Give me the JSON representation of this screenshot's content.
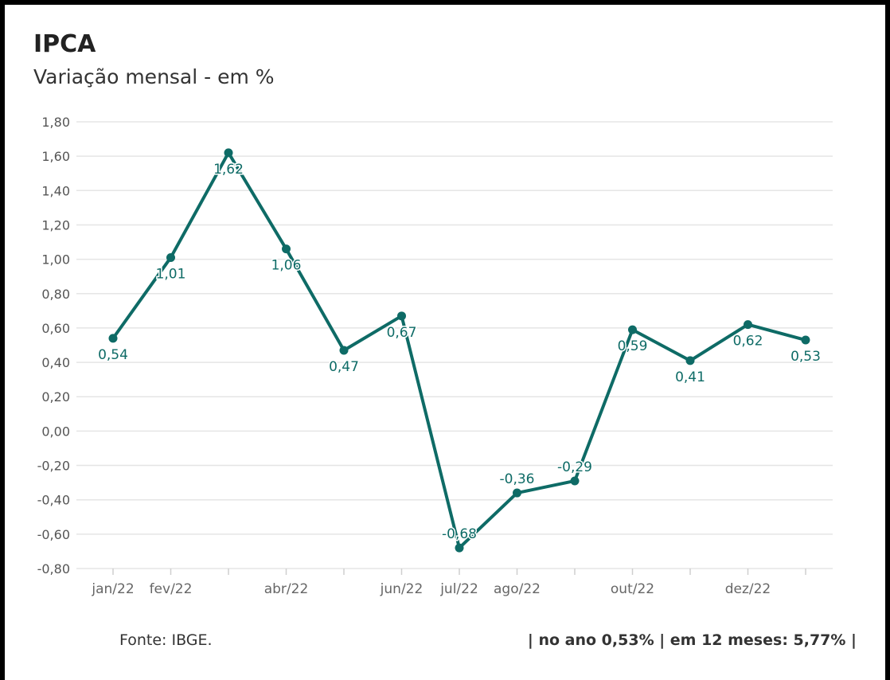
{
  "title": "IPCA",
  "subtitle": "Variação mensal - em %",
  "footer": {
    "source": "Fonte: IBGE.",
    "stats": "| no ano 0,53% | em 12 meses: 5,77% |"
  },
  "colors": {
    "line": "#0e6b66",
    "grid": "#e5e5e5",
    "text": "#333333"
  },
  "chart_data": {
    "type": "line",
    "title": "IPCA",
    "subtitle": "Variação mensal - em %",
    "xlabel": "",
    "ylabel": "",
    "ylim": [
      -0.8,
      1.8
    ],
    "yticks": [
      "1,80",
      "1,60",
      "1,40",
      "1,20",
      "1,00",
      "0,80",
      "0,60",
      "0,40",
      "0,20",
      "0,00",
      "-0,20",
      "-0,40",
      "-0,60",
      "-0,80"
    ],
    "ytick_values": [
      1.8,
      1.6,
      1.4,
      1.2,
      1.0,
      0.8,
      0.6,
      0.4,
      0.2,
      0.0,
      -0.2,
      -0.4,
      -0.6,
      -0.8
    ],
    "xtick_labels": [
      "jan/22",
      "fev/22",
      "",
      "abr/22",
      "",
      "jun/22",
      "jul/22",
      "ago/22",
      "",
      "out/22",
      "",
      "dez/22",
      ""
    ],
    "values": [
      0.54,
      1.01,
      1.62,
      1.06,
      0.47,
      0.67,
      -0.68,
      -0.36,
      -0.29,
      0.59,
      0.41,
      0.62,
      0.53
    ],
    "value_labels": [
      "0,54",
      "1,01",
      "1,62",
      "1,06",
      "0,47",
      "0,67",
      "-0,68",
      "-0,36",
      "-0,29",
      "0,59",
      "0,41",
      "0,62",
      "0,53"
    ],
    "label_positions": [
      "below",
      "below",
      "below",
      "below",
      "below",
      "below",
      "above",
      "above",
      "above",
      "below",
      "below",
      "below",
      "below"
    ],
    "grid": true
  }
}
